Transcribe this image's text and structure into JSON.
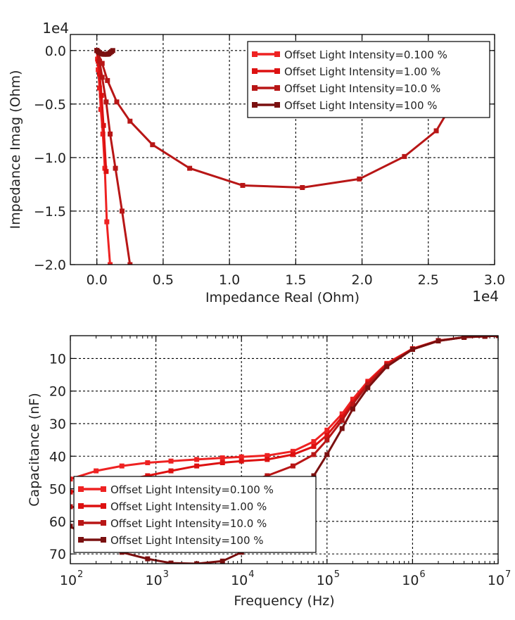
{
  "chart_data": [
    {
      "type": "line",
      "xlabel": "Impedance Real (Ohm)",
      "ylabel": "Impedance Imag (Ohm)",
      "x_multiplier_label": "1e4",
      "y_multiplier_label": "1e4",
      "xlim": [
        -0.2,
        3.0
      ],
      "ylim": [
        0.15,
        -2.0
      ],
      "x_ticks": [
        0.0,
        0.5,
        1.0,
        1.5,
        2.0,
        2.5,
        3.0
      ],
      "x_tick_labels": [
        "0.0",
        "0.5",
        "1.0",
        "1.5",
        "2.0",
        "2.5",
        "3.0"
      ],
      "y_ticks": [
        -2.0,
        -1.5,
        -1.0,
        -0.5,
        0.0
      ],
      "y_tick_labels": [
        "−2.0",
        "−1.5",
        "−1.0",
        "−0.5",
        "0.0"
      ],
      "grid": true,
      "legend_position": "top-right",
      "series": [
        {
          "name": "Offset Light Intensity=0.100 %",
          "color": "#ee2222",
          "x": [
            0.0,
            0.005,
            0.01,
            0.02,
            0.03,
            0.045,
            0.06,
            0.075,
            0.1
          ],
          "y": [
            0.0,
            -0.08,
            -0.18,
            -0.35,
            -0.55,
            -0.78,
            -1.1,
            -1.6,
            -2.0
          ]
        },
        {
          "name": "Offset Light Intensity=1.00 %",
          "color": "#dd1111",
          "x": [
            0.0,
            0.01,
            0.02,
            0.035,
            0.05,
            0.07
          ],
          "y": [
            0.0,
            -0.1,
            -0.22,
            -0.42,
            -0.7,
            -1.13
          ]
        },
        {
          "name": "Offset Light Intensity=10.0 %",
          "color": "#b81616",
          "x": [
            0.0,
            0.02,
            0.04,
            0.07,
            0.1,
            0.14,
            0.19,
            0.25
          ],
          "y": [
            0.0,
            -0.1,
            -0.25,
            -0.48,
            -0.78,
            -1.1,
            -1.5,
            -2.0
          ]
        },
        {
          "name": "Offset Light Intensity=10.0 %",
          "color": "#b81616",
          "x": [
            0.0,
            0.04,
            0.08,
            0.15,
            0.25,
            0.42,
            0.7,
            1.1,
            1.55,
            1.98,
            2.32,
            2.56,
            2.67,
            2.71
          ],
          "y": [
            0.0,
            -0.12,
            -0.28,
            -0.48,
            -0.66,
            -0.88,
            -1.1,
            -1.26,
            -1.28,
            -1.2,
            -0.99,
            -0.75,
            -0.52,
            -0.33
          ]
        },
        {
          "name": "Offset Light Intensity=100 %",
          "color": "#7a1010",
          "x": [
            0.0,
            0.01,
            0.02,
            0.035,
            0.05,
            0.065,
            0.08,
            0.09,
            0.1,
            0.11,
            0.12
          ],
          "y": [
            0.0,
            -0.01,
            -0.02,
            -0.03,
            -0.035,
            -0.035,
            -0.035,
            -0.03,
            -0.02,
            -0.01,
            0.0
          ]
        }
      ]
    },
    {
      "type": "line",
      "xlabel": "Frequency (Hz)",
      "ylabel": "Capacitance (nF)",
      "x_scale": "log",
      "xlim": [
        100,
        10000000
      ],
      "ylim": [
        3,
        73
      ],
      "x_ticks": [
        100,
        1000,
        10000,
        100000,
        1000000,
        10000000
      ],
      "x_tick_bases": [
        "10",
        "10",
        "10",
        "10",
        "10",
        "10"
      ],
      "x_tick_exponents": [
        "2",
        "3",
        "4",
        "5",
        "6",
        "7"
      ],
      "y_ticks": [
        10,
        20,
        30,
        40,
        50,
        60,
        70
      ],
      "y_tick_labels": [
        "10",
        "20",
        "30",
        "40",
        "50",
        "60",
        "70"
      ],
      "grid": true,
      "legend_position": "bottom-left",
      "series": [
        {
          "name": "Offset Light Intensity=0.100 %",
          "color": "#ee2222",
          "x": [
            100,
            200,
            400,
            800,
            1500,
            3000,
            6000,
            10000,
            20000,
            40000,
            70000,
            100000,
            150000,
            200000,
            300000,
            500000,
            1000000,
            2000000,
            4000000,
            7000000,
            10000000
          ],
          "y": [
            47,
            44.5,
            43,
            42,
            41.5,
            41,
            40.5,
            40.2,
            39.8,
            38.5,
            35.5,
            32,
            27,
            22.5,
            17,
            11.5,
            7,
            4.5,
            3.5,
            3.2,
            3
          ]
        },
        {
          "name": "Offset Light Intensity=1.00 %",
          "color": "#dd1111",
          "x": [
            100,
            200,
            400,
            800,
            1500,
            3000,
            6000,
            10000,
            20000,
            40000,
            70000,
            100000,
            150000,
            200000,
            300000,
            500000,
            1000000,
            2000000,
            4000000,
            7000000,
            10000000
          ],
          "y": [
            51,
            49.5,
            47.5,
            46,
            44.5,
            43,
            42,
            41.5,
            41,
            39.5,
            37,
            33.5,
            28,
            23.5,
            17.5,
            11.8,
            7,
            4.5,
            3.5,
            3.2,
            3
          ]
        },
        {
          "name": "Offset Light Intensity=10.0 %",
          "color": "#b81616",
          "x": [
            100,
            200,
            400,
            800,
            1500,
            3000,
            6000,
            10000,
            20000,
            40000,
            70000,
            100000,
            150000,
            200000,
            300000,
            500000,
            1000000,
            2000000,
            4000000,
            7000000,
            10000000
          ],
          "y": [
            55.5,
            56.3,
            56.6,
            56,
            54.5,
            52.5,
            50.5,
            48.5,
            46,
            43,
            39.5,
            35,
            29,
            24,
            18,
            12,
            7.2,
            4.6,
            3.5,
            3.2,
            3
          ]
        },
        {
          "name": "Offset Light Intensity=100 %",
          "color": "#7a1010",
          "x": [
            100,
            200,
            400,
            800,
            1500,
            3000,
            6000,
            10000,
            20000,
            40000,
            70000,
            100000,
            150000,
            200000,
            300000,
            500000,
            1000000,
            2000000,
            4000000,
            7000000,
            10000000
          ],
          "y": [
            61.5,
            66.5,
            69.5,
            71.5,
            72.8,
            73,
            72.2,
            69.5,
            64,
            55,
            46,
            39.5,
            31.5,
            25.5,
            19,
            12.5,
            7.2,
            4.6,
            3.5,
            3.2,
            3
          ]
        }
      ]
    }
  ]
}
